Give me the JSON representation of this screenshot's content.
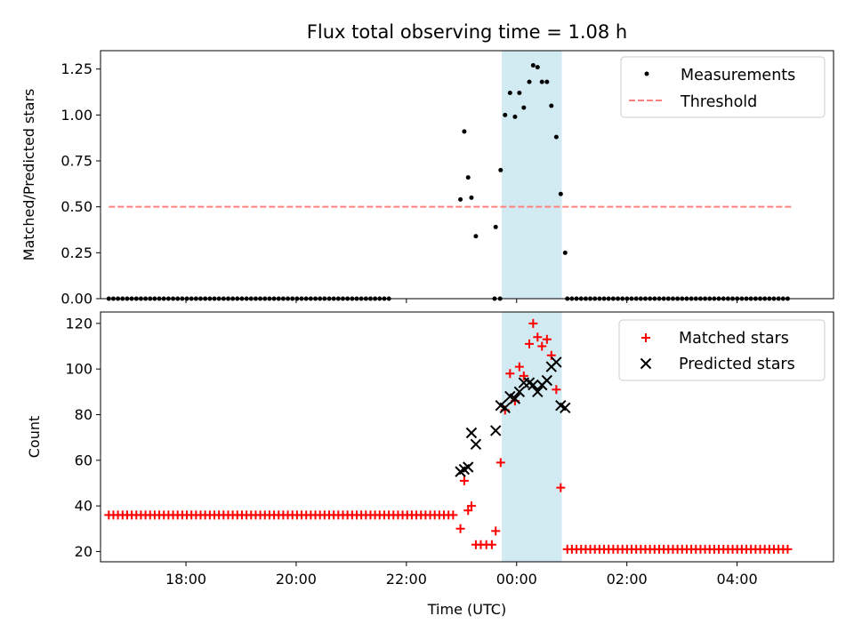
{
  "chart_data": [
    {
      "type": "scatter",
      "title": "Flux total observing time = 1.08 h",
      "xlabel": "",
      "ylabel": "Matched/Predicted stars",
      "ylim": [
        0,
        1.35
      ],
      "yticks": [
        0.0,
        0.25,
        0.5,
        0.75,
        1.0,
        1.25
      ],
      "ytick_labels": [
        "0.00",
        "0.25",
        "0.50",
        "0.75",
        "1.00",
        "1.25"
      ],
      "xlim": [
        16.45,
        29.75
      ],
      "xticks": [
        18,
        20,
        22,
        24,
        26,
        28
      ],
      "shaded_interval": [
        23.73,
        24.82
      ],
      "shade_color": "#add8e6",
      "legend": {
        "position": "top-right",
        "entries": [
          "Measurements",
          "Threshold"
        ]
      },
      "series": [
        {
          "name": "Measurements",
          "marker": "dot",
          "color": "#000000",
          "x_zero_start": 16.6,
          "x_zero_end": 21.7,
          "x_zero_step": 0.0833,
          "x_zero_tail_start": 24.92,
          "x_zero_tail_end": 29.0,
          "x_zero_tail_step": 0.0833,
          "x_zero_extra": [
            23.6,
            23.7
          ],
          "x": [
            22.98,
            23.05,
            23.12,
            23.18,
            23.26,
            23.62,
            23.71,
            23.79,
            23.88,
            23.97,
            24.05,
            24.13,
            24.23,
            24.3,
            24.38,
            24.46,
            24.55,
            24.63,
            24.72,
            24.8,
            24.88
          ],
          "y": [
            0.54,
            0.91,
            0.66,
            0.55,
            0.34,
            0.39,
            0.7,
            1.0,
            1.12,
            0.99,
            1.12,
            1.04,
            1.18,
            1.27,
            1.26,
            1.18,
            1.18,
            1.05,
            0.88,
            0.57,
            0.25
          ]
        },
        {
          "name": "Threshold",
          "style": "dashed",
          "color": "#ff7f7f",
          "x": [
            16.6,
            29.0
          ],
          "y": [
            0.5,
            0.5
          ]
        }
      ]
    },
    {
      "type": "scatter",
      "title": "",
      "xlabel": "Time (UTC)",
      "ylabel": "Count",
      "ylim": [
        15.5,
        125
      ],
      "yticks": [
        20,
        40,
        60,
        80,
        100,
        120
      ],
      "ytick_labels": [
        "20",
        "40",
        "60",
        "80",
        "100",
        "120"
      ],
      "xlim": [
        16.45,
        29.75
      ],
      "xticks": [
        18,
        20,
        22,
        24,
        26,
        28
      ],
      "xtick_labels": [
        "18:00",
        "20:00",
        "22:00",
        "00:00",
        "02:00",
        "04:00"
      ],
      "shaded_interval": [
        23.73,
        24.82
      ],
      "shade_color": "#add8e6",
      "legend": {
        "position": "top-right",
        "entries": [
          "Matched stars",
          "Predicted stars"
        ]
      },
      "series": [
        {
          "name": "Matched stars",
          "marker": "plus",
          "color": "#ff0000",
          "flat_start": 16.6,
          "flat_end": 22.9,
          "flat_step": 0.0833,
          "flat_value": 36,
          "flat_tail_start": 24.92,
          "flat_tail_end": 29.0,
          "flat_tail_step": 0.0833,
          "flat_tail_value": 21,
          "x": [
            22.98,
            23.05,
            23.12,
            23.18,
            23.26,
            23.35,
            23.45,
            23.55,
            23.62,
            23.71,
            23.79,
            23.88,
            23.97,
            24.05,
            24.13,
            24.23,
            24.3,
            24.38,
            24.46,
            24.55,
            24.63,
            24.72,
            24.8
          ],
          "y": [
            30,
            51,
            38,
            40,
            23,
            23,
            23,
            23,
            29,
            59,
            82,
            98,
            86,
            101,
            97,
            111,
            120,
            114,
            110,
            113,
            106,
            91,
            48
          ]
        },
        {
          "name": "Predicted stars",
          "marker": "x",
          "color": "#000000",
          "x": [
            22.98,
            23.05,
            23.12,
            23.18,
            23.26,
            23.62,
            23.71,
            23.79,
            23.88,
            23.97,
            24.05,
            24.13,
            24.23,
            24.3,
            24.38,
            24.46,
            24.55,
            24.63,
            24.72,
            24.8,
            24.88
          ],
          "y": [
            55,
            56,
            57,
            72,
            67,
            73,
            84,
            83,
            88,
            87,
            90,
            94,
            94,
            93,
            90,
            93,
            95,
            101,
            103,
            84,
            83
          ]
        }
      ]
    }
  ]
}
